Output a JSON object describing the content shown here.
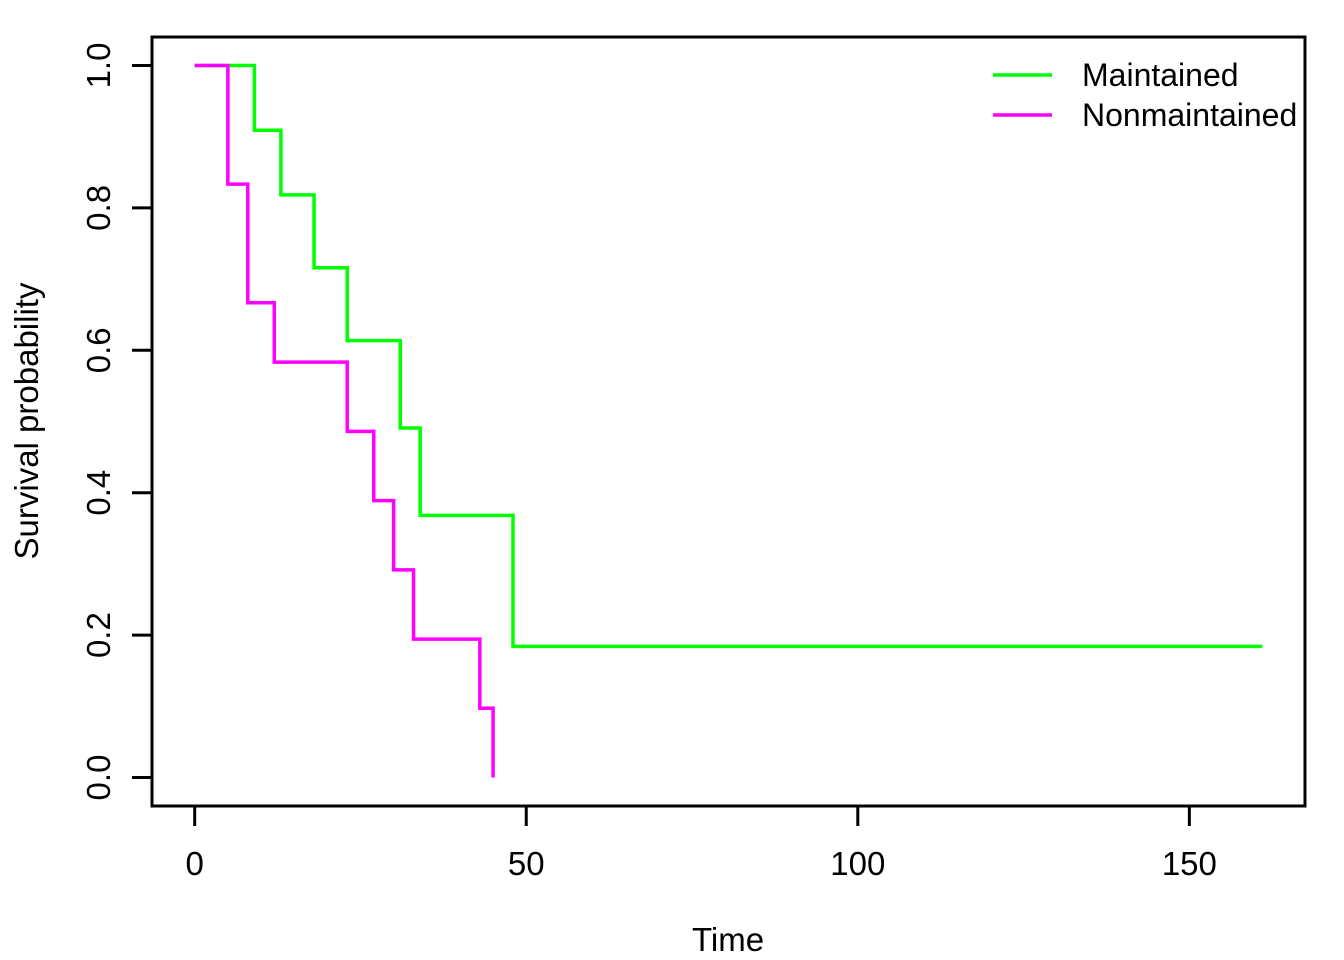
{
  "chart_data": {
    "type": "line",
    "subtype": "step-after",
    "title": "",
    "xlabel": "Time",
    "ylabel": "Survival probability",
    "xlim": [
      -6.44,
      167.44
    ],
    "ylim": [
      -0.04,
      1.04
    ],
    "x_ticks": [
      "0",
      "50",
      "100",
      "150"
    ],
    "y_ticks": [
      "0.0",
      "0.2",
      "0.4",
      "0.6",
      "0.8",
      "1.0"
    ],
    "grid": false,
    "background_color": "#ffffff",
    "frame_color": "#000000",
    "legend_position": "topright",
    "series": [
      {
        "name": "Maintained",
        "color": "#00FF00",
        "points": [
          [
            0,
            1.0
          ],
          [
            9,
            0.9091
          ],
          [
            13,
            0.8182
          ],
          [
            18,
            0.7159
          ],
          [
            23,
            0.6136
          ],
          [
            31,
            0.4909
          ],
          [
            34,
            0.3682
          ],
          [
            48,
            0.1841
          ],
          [
            161,
            0.1841
          ]
        ]
      },
      {
        "name": "Nonmaintained",
        "color": "#FF00FF",
        "points": [
          [
            0,
            1.0
          ],
          [
            5,
            0.8333
          ],
          [
            8,
            0.6667
          ],
          [
            12,
            0.5833
          ],
          [
            23,
            0.4861
          ],
          [
            27,
            0.3889
          ],
          [
            30,
            0.2917
          ],
          [
            33,
            0.1944
          ],
          [
            43,
            0.0972
          ],
          [
            45,
            0.0
          ]
        ]
      }
    ]
  }
}
